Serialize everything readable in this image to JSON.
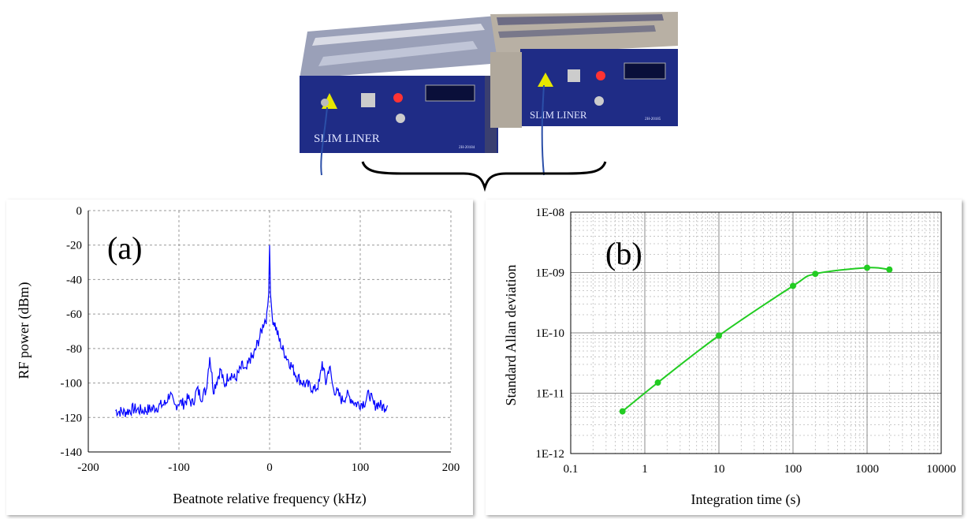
{
  "devices": {
    "left_brand": "SLIM LINER",
    "right_brand": "SLIM LINER",
    "left_serial": "2H-20184",
    "right_serial": "2H-20185"
  },
  "chart_data": [
    {
      "type": "line",
      "panel_label": "(a)",
      "xlabel": "Beatnote relative frequency (kHz)",
      "ylabel": "RF power (dBm)",
      "xlim": [
        -200,
        200
      ],
      "ylim": [
        -140,
        0
      ],
      "x_ticks": [
        "-200",
        "-100",
        "0",
        "100",
        "200"
      ],
      "y_ticks": [
        "0",
        "-20",
        "-40",
        "-60",
        "-80",
        "-100",
        "-120",
        "-140"
      ],
      "grid": true,
      "color": "#0000ff",
      "series": [
        {
          "x": [
            -170,
            -160,
            -150,
            -140,
            -130,
            -120,
            -115,
            -110,
            -105,
            -100,
            -95,
            -90,
            -85,
            -80,
            -75,
            -70,
            -66,
            -62,
            -58,
            -54,
            -50,
            -46,
            -42,
            -38,
            -34,
            -30,
            -26,
            -22,
            -18,
            -14,
            -10,
            -6,
            -3,
            -1,
            0,
            1,
            3,
            6,
            10,
            14,
            18,
            22,
            26,
            30,
            35,
            40,
            45,
            50,
            55,
            58,
            62,
            66,
            70,
            75,
            80,
            85,
            90,
            95,
            100,
            105,
            110,
            115,
            120,
            125,
            130
          ],
          "y": [
            -116,
            -117,
            -115,
            -116,
            -115,
            -113,
            -112,
            -106,
            -114,
            -111,
            -112,
            -109,
            -112,
            -104,
            -108,
            -104,
            -84,
            -104,
            -98,
            -92,
            -102,
            -96,
            -95,
            -98,
            -94,
            -90,
            -94,
            -86,
            -85,
            -78,
            -72,
            -64,
            -62,
            -48,
            -20,
            -48,
            -62,
            -66,
            -74,
            -80,
            -84,
            -88,
            -92,
            -96,
            -99,
            -101,
            -102,
            -104,
            -100,
            -88,
            -100,
            -90,
            -103,
            -106,
            -110,
            -107,
            -109,
            -112,
            -112,
            -111,
            -106,
            -113,
            -112,
            -114,
            -113
          ]
        }
      ]
    },
    {
      "type": "line",
      "panel_label": "(b)",
      "xlabel": "Integration time (s)",
      "ylabel": "Standard Allan deviation",
      "x_scale": "log",
      "y_scale": "log",
      "xlim": [
        0.1,
        10000
      ],
      "ylim": [
        1e-12,
        1e-08
      ],
      "x_ticks": [
        "0.1",
        "1",
        "10",
        "100",
        "1000",
        "10000"
      ],
      "y_ticks": [
        "1E-08",
        "1E-09",
        "1E-10",
        "1E-11",
        "1E-12"
      ],
      "grid": true,
      "color": "#22cc22",
      "series": [
        {
          "x": [
            0.5,
            1.5,
            10,
            100,
            200,
            1000,
            2000
          ],
          "y": [
            5e-12,
            1.5e-11,
            9e-11,
            6e-10,
            9.5e-10,
            1.2e-09,
            1.12e-09
          ]
        }
      ]
    }
  ]
}
